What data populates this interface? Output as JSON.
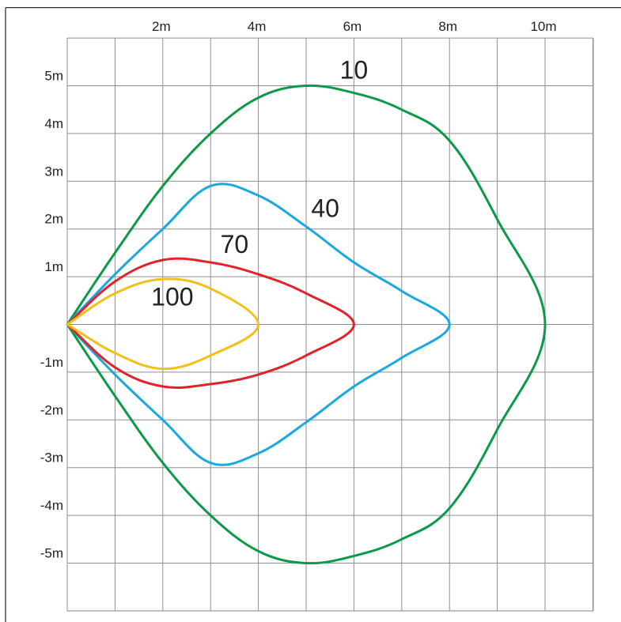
{
  "chart_data": {
    "type": "line",
    "title": "",
    "xlabel": "",
    "ylabel": "",
    "xlim": [
      0,
      11
    ],
    "ylim": [
      -6,
      6
    ],
    "grid": true,
    "x_tick_labels": [
      {
        "value": 2,
        "label": "2m"
      },
      {
        "value": 4,
        "label": "4m"
      },
      {
        "value": 6,
        "label": "6m"
      },
      {
        "value": 8,
        "label": "8m"
      },
      {
        "value": 10,
        "label": "10m"
      }
    ],
    "y_tick_labels": [
      {
        "value": 5,
        "label": "5m"
      },
      {
        "value": 4,
        "label": "4m"
      },
      {
        "value": 3,
        "label": "3m"
      },
      {
        "value": 2,
        "label": "2m"
      },
      {
        "value": 1,
        "label": "1m"
      },
      {
        "value": -1,
        "label": "-1m"
      },
      {
        "value": -2,
        "label": "-2m"
      },
      {
        "value": -3,
        "label": "-3m"
      },
      {
        "value": -4,
        "label": "-4m"
      },
      {
        "value": -5,
        "label": "-5m"
      }
    ],
    "series": [
      {
        "name": "10",
        "color": "#0b9a48",
        "label_at": [
          6.0,
          5.15
        ],
        "points": [
          [
            0,
            0
          ],
          [
            1,
            1.5
          ],
          [
            2,
            2.9
          ],
          [
            3,
            4.0
          ],
          [
            4,
            4.75
          ],
          [
            5,
            5.0
          ],
          [
            6,
            4.85
          ],
          [
            7,
            4.5
          ],
          [
            8,
            3.85
          ],
          [
            9,
            2.2
          ],
          [
            10,
            0
          ],
          [
            9,
            -2.2
          ],
          [
            8,
            -3.85
          ],
          [
            7,
            -4.5
          ],
          [
            6,
            -4.85
          ],
          [
            5,
            -5.0
          ],
          [
            4,
            -4.75
          ],
          [
            3,
            -4.0
          ],
          [
            2,
            -2.9
          ],
          [
            1,
            -1.5
          ],
          [
            0,
            0
          ]
        ]
      },
      {
        "name": "40",
        "color": "#19a8e0",
        "label_at": [
          5.4,
          2.25
        ],
        "points": [
          [
            0,
            0
          ],
          [
            1,
            1.05
          ],
          [
            2,
            2.0
          ],
          [
            3,
            2.9
          ],
          [
            4,
            2.7
          ],
          [
            5,
            2.05
          ],
          [
            6,
            1.3
          ],
          [
            7,
            0.7
          ],
          [
            8,
            0
          ],
          [
            7,
            -0.7
          ],
          [
            6,
            -1.3
          ],
          [
            5,
            -2.05
          ],
          [
            4,
            -2.7
          ],
          [
            3,
            -2.9
          ],
          [
            2,
            -2.0
          ],
          [
            1,
            -1.05
          ],
          [
            0,
            0
          ]
        ]
      },
      {
        "name": "70",
        "color": "#e2232a",
        "label_at": [
          3.5,
          1.5
        ],
        "points": [
          [
            0,
            0
          ],
          [
            1,
            0.9
          ],
          [
            2,
            1.35
          ],
          [
            3,
            1.3
          ],
          [
            4,
            1.05
          ],
          [
            5,
            0.65
          ],
          [
            6,
            0
          ],
          [
            5,
            -0.65
          ],
          [
            4,
            -1.05
          ],
          [
            3,
            -1.25
          ],
          [
            2,
            -1.3
          ],
          [
            1,
            -0.9
          ],
          [
            0,
            0
          ]
        ]
      },
      {
        "name": "100",
        "color": "#f6bf17",
        "label_at": [
          2.2,
          0.4
        ],
        "points": [
          [
            0,
            0
          ],
          [
            1,
            0.65
          ],
          [
            2,
            0.95
          ],
          [
            3,
            0.75
          ],
          [
            4,
            0
          ],
          [
            3,
            -0.65
          ],
          [
            2,
            -0.93
          ],
          [
            1,
            -0.6
          ],
          [
            0,
            0
          ]
        ]
      }
    ]
  }
}
